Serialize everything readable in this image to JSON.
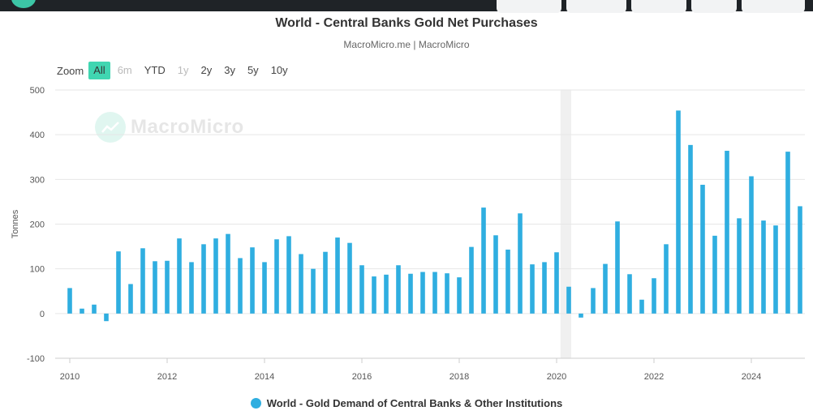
{
  "chart_data": {
    "type": "bar",
    "title": "World - Central Banks Gold Net Purchases",
    "subtitle": "MacroMicro.me | MacroMicro",
    "ylabel": "Tonnes",
    "ylim": [
      -100,
      500
    ],
    "yticks": [
      "500",
      "400",
      "300",
      "200",
      "100",
      "0",
      "-100"
    ],
    "xlim": [
      2010,
      2025.4
    ],
    "xticks": [
      "2010",
      "2012",
      "2014",
      "2016",
      "2018",
      "2020",
      "2022",
      "2024"
    ],
    "grid": "horizontal",
    "legend_position": "bottom",
    "highlight_band": [
      2020.08,
      2020.3
    ],
    "series": [
      {
        "name": "World - Gold Demand of Central Banks & Other Institutions",
        "color": "#2faee0",
        "points": [
          {
            "x": "2010 Q1",
            "t": 2010.0,
            "y": 57
          },
          {
            "x": "2010 Q2",
            "t": 2010.25,
            "y": 11
          },
          {
            "x": "2010 Q3",
            "t": 2010.5,
            "y": 20
          },
          {
            "x": "2010 Q4",
            "t": 2010.75,
            "y": -17
          },
          {
            "x": "2011 Q1",
            "t": 2011.0,
            "y": 139
          },
          {
            "x": "2011 Q2",
            "t": 2011.25,
            "y": 66
          },
          {
            "x": "2011 Q3",
            "t": 2011.5,
            "y": 146
          },
          {
            "x": "2011 Q4",
            "t": 2011.75,
            "y": 117
          },
          {
            "x": "2012 Q1",
            "t": 2012.0,
            "y": 118
          },
          {
            "x": "2012 Q2",
            "t": 2012.25,
            "y": 168
          },
          {
            "x": "2012 Q3",
            "t": 2012.5,
            "y": 115
          },
          {
            "x": "2012 Q4",
            "t": 2012.75,
            "y": 155
          },
          {
            "x": "2013 Q1",
            "t": 2013.0,
            "y": 168
          },
          {
            "x": "2013 Q2",
            "t": 2013.25,
            "y": 178
          },
          {
            "x": "2013 Q3",
            "t": 2013.5,
            "y": 124
          },
          {
            "x": "2013 Q4",
            "t": 2013.75,
            "y": 148
          },
          {
            "x": "2014 Q1",
            "t": 2014.0,
            "y": 115
          },
          {
            "x": "2014 Q2",
            "t": 2014.25,
            "y": 166
          },
          {
            "x": "2014 Q3",
            "t": 2014.5,
            "y": 173
          },
          {
            "x": "2014 Q4",
            "t": 2014.75,
            "y": 133
          },
          {
            "x": "2015 Q1",
            "t": 2015.0,
            "y": 100
          },
          {
            "x": "2015 Q2",
            "t": 2015.25,
            "y": 138
          },
          {
            "x": "2015 Q3",
            "t": 2015.5,
            "y": 170
          },
          {
            "x": "2015 Q4",
            "t": 2015.75,
            "y": 158
          },
          {
            "x": "2016 Q1",
            "t": 2016.0,
            "y": 108
          },
          {
            "x": "2016 Q2",
            "t": 2016.25,
            "y": 83
          },
          {
            "x": "2016 Q3",
            "t": 2016.5,
            "y": 87
          },
          {
            "x": "2016 Q4",
            "t": 2016.75,
            "y": 108
          },
          {
            "x": "2017 Q1",
            "t": 2017.0,
            "y": 89
          },
          {
            "x": "2017 Q2",
            "t": 2017.25,
            "y": 93
          },
          {
            "x": "2017 Q3",
            "t": 2017.5,
            "y": 93
          },
          {
            "x": "2017 Q4",
            "t": 2017.75,
            "y": 90
          },
          {
            "x": "2018 Q1",
            "t": 2018.0,
            "y": 81
          },
          {
            "x": "2018 Q2",
            "t": 2018.25,
            "y": 149
          },
          {
            "x": "2018 Q3",
            "t": 2018.5,
            "y": 237
          },
          {
            "x": "2018 Q4",
            "t": 2018.75,
            "y": 175
          },
          {
            "x": "2019 Q1",
            "t": 2019.0,
            "y": 143
          },
          {
            "x": "2019 Q2",
            "t": 2019.25,
            "y": 224
          },
          {
            "x": "2019 Q3",
            "t": 2019.5,
            "y": 110
          },
          {
            "x": "2019 Q4",
            "t": 2019.75,
            "y": 115
          },
          {
            "x": "2020 Q1",
            "t": 2020.0,
            "y": 137
          },
          {
            "x": "2020 Q2",
            "t": 2020.25,
            "y": 60
          },
          {
            "x": "2020 Q3",
            "t": 2020.5,
            "y": -9
          },
          {
            "x": "2020 Q4",
            "t": 2020.75,
            "y": 57
          },
          {
            "x": "2021 Q1",
            "t": 2021.0,
            "y": 111
          },
          {
            "x": "2021 Q2",
            "t": 2021.25,
            "y": 206
          },
          {
            "x": "2021 Q3",
            "t": 2021.5,
            "y": 88
          },
          {
            "x": "2021 Q4",
            "t": 2021.75,
            "y": 31
          },
          {
            "x": "2022 Q1",
            "t": 2022.0,
            "y": 79
          },
          {
            "x": "2022 Q2",
            "t": 2022.25,
            "y": 155
          },
          {
            "x": "2022 Q3",
            "t": 2022.5,
            "y": 454
          },
          {
            "x": "2022 Q4",
            "t": 2022.75,
            "y": 377
          },
          {
            "x": "2023 Q1",
            "t": 2023.0,
            "y": 288
          },
          {
            "x": "2023 Q2",
            "t": 2023.25,
            "y": 174
          },
          {
            "x": "2023 Q3",
            "t": 2023.5,
            "y": 364
          },
          {
            "x": "2023 Q4",
            "t": 2023.75,
            "y": 213
          },
          {
            "x": "2024 Q1",
            "t": 2024.0,
            "y": 307
          },
          {
            "x": "2024 Q2",
            "t": 2024.25,
            "y": 208
          },
          {
            "x": "2024 Q3",
            "t": 2024.5,
            "y": 197
          },
          {
            "x": "2024 Q4",
            "t": 2024.75,
            "y": 362
          },
          {
            "x": "2025 Q1",
            "t": 2025.0,
            "y": 240
          }
        ]
      }
    ]
  },
  "zoom": {
    "label": "Zoom",
    "buttons": [
      {
        "label": "All",
        "state": "active"
      },
      {
        "label": "6m",
        "state": "disabled"
      },
      {
        "label": "YTD",
        "state": "normal"
      },
      {
        "label": "1y",
        "state": "disabled"
      },
      {
        "label": "2y",
        "state": "normal"
      },
      {
        "label": "3y",
        "state": "normal"
      },
      {
        "label": "5y",
        "state": "normal"
      },
      {
        "label": "10y",
        "state": "normal"
      }
    ]
  },
  "watermark": {
    "text": "MacroMicro"
  }
}
